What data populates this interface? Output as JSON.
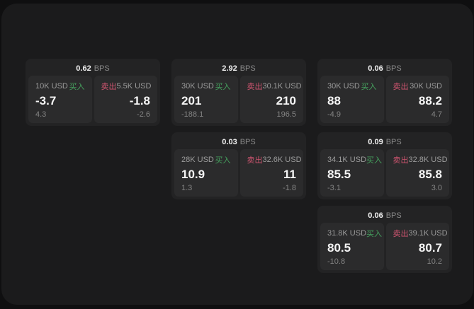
{
  "colors": {
    "buy-green": "#45a15e",
    "sell-red": "#d05570",
    "page-bg": "#0f0f10",
    "container-bg": "#1b1b1c",
    "card-bg": "#232324",
    "panel-bg": "#2b2b2c"
  },
  "cards": [
    {
      "bps_value": "0.62",
      "bps_unit": "BPS",
      "buy": {
        "amount": "10K USD",
        "label": "买入",
        "price": "-3.7",
        "delta": "4.3"
      },
      "sell": {
        "label": "卖出",
        "amount": "5.5K USD",
        "price": "-1.8",
        "delta": "-2.6"
      }
    },
    {
      "bps_value": "2.92",
      "bps_unit": "BPS",
      "buy": {
        "amount": "30K USD",
        "label": "买入",
        "price": "201",
        "delta": "-188.1"
      },
      "sell": {
        "label": "卖出",
        "amount": "30.1K USD",
        "price": "210",
        "delta": "196.5"
      }
    },
    {
      "bps_value": "0.06",
      "bps_unit": "BPS",
      "buy": {
        "amount": "30K USD",
        "label": "买入",
        "price": "88",
        "delta": "-4.9"
      },
      "sell": {
        "label": "卖出",
        "amount": "30K USD",
        "price": "88.2",
        "delta": "4.7"
      }
    },
    {
      "bps_value": "0.03",
      "bps_unit": "BPS",
      "buy": {
        "amount": "28K USD",
        "label": "买入",
        "price": "10.9",
        "delta": "1.3"
      },
      "sell": {
        "label": "卖出",
        "amount": "32.6K USD",
        "price": "11",
        "delta": "-1.8"
      }
    },
    {
      "bps_value": "0.09",
      "bps_unit": "BPS",
      "buy": {
        "amount": "34.1K USD",
        "label": "买入",
        "price": "85.5",
        "delta": "-3.1"
      },
      "sell": {
        "label": "卖出",
        "amount": "32.8K USD",
        "price": "85.8",
        "delta": "3.0"
      }
    },
    {
      "bps_value": "0.06",
      "bps_unit": "BPS",
      "buy": {
        "amount": "31.8K USD",
        "label": "买入",
        "price": "80.5",
        "delta": "-10.8"
      },
      "sell": {
        "label": "卖出",
        "amount": "39.1K USD",
        "price": "80.7",
        "delta": "10.2"
      }
    }
  ]
}
